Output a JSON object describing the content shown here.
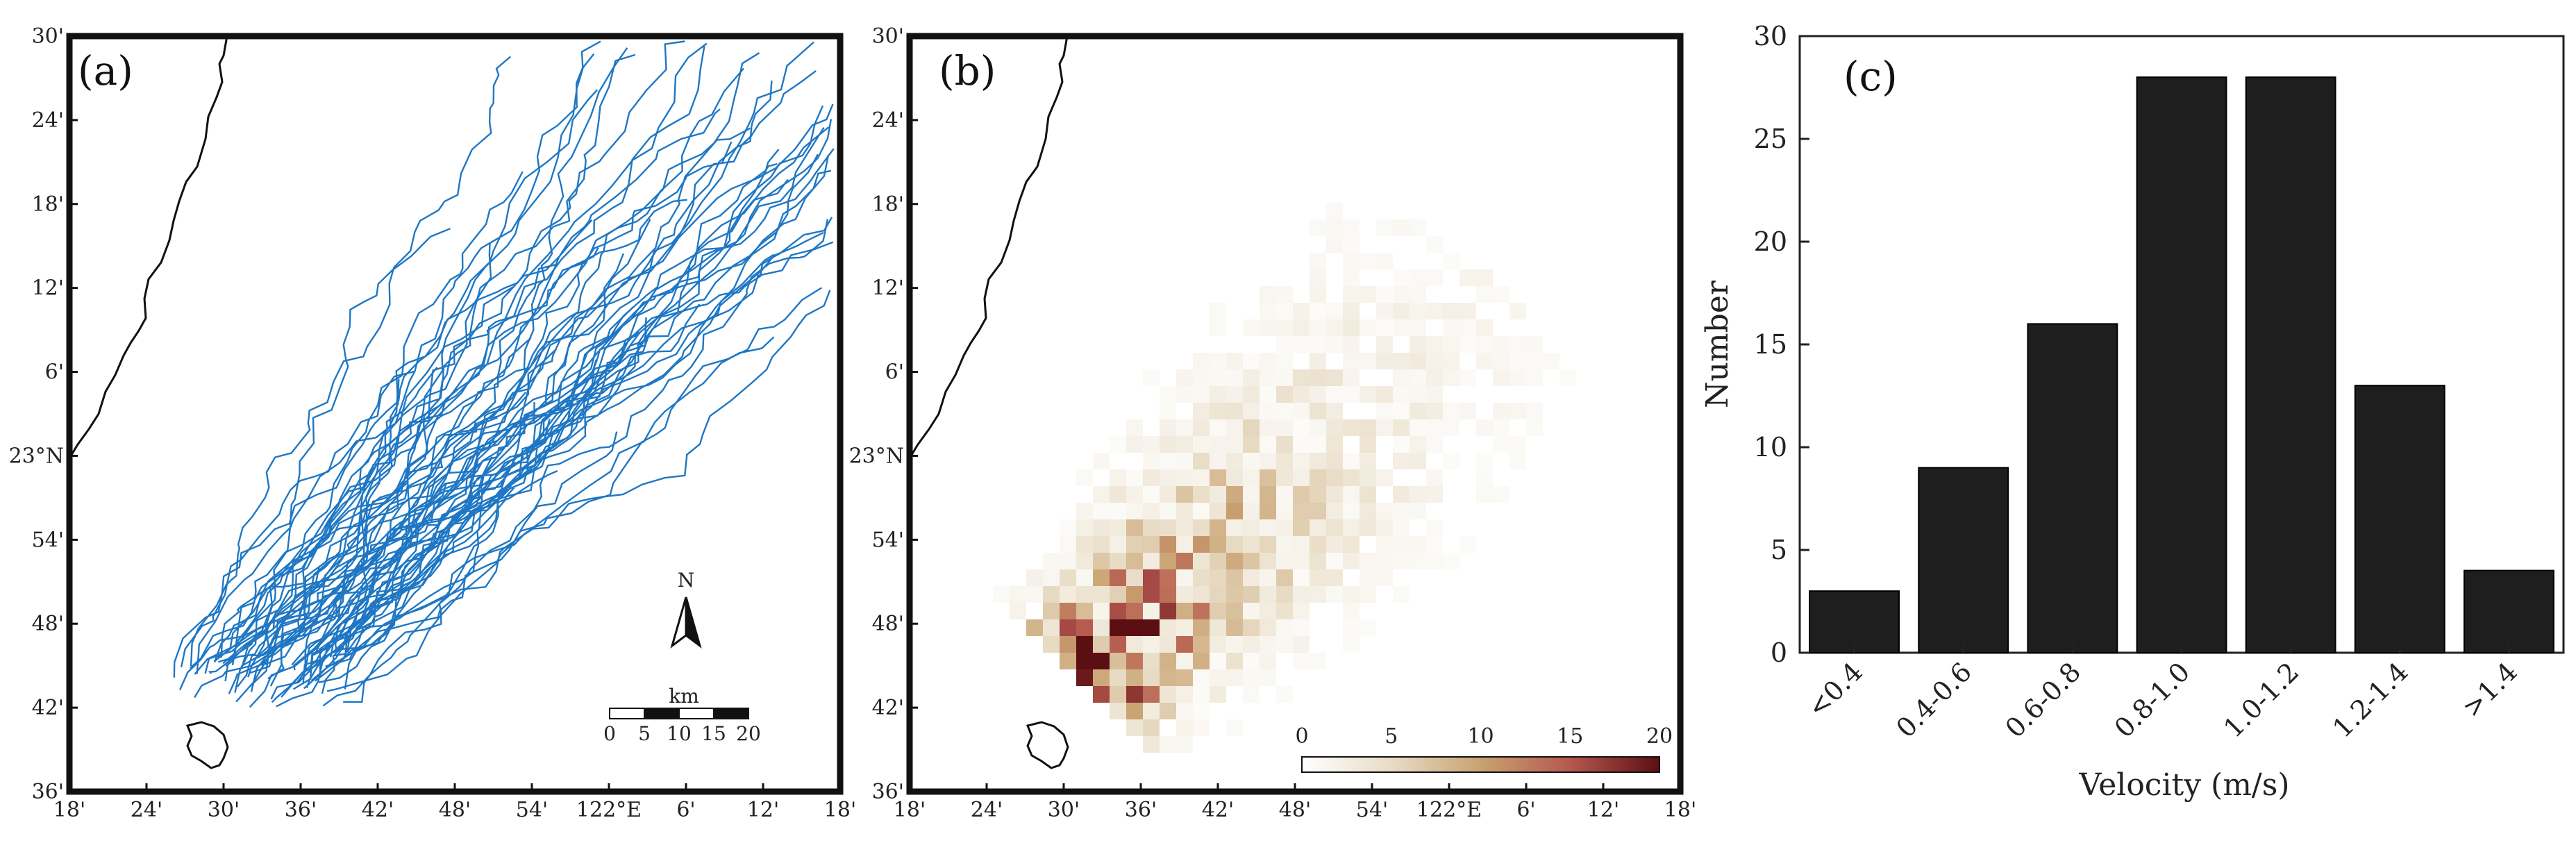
{
  "panels": {
    "a": {
      "label": "(a)"
    },
    "b": {
      "label": "(b)"
    },
    "c": {
      "label": "(c)"
    }
  },
  "map_ticks": {
    "lon": [
      "18'",
      "24'",
      "30'",
      "36'",
      "42'",
      "48'",
      "54'",
      "122°E",
      "6'",
      "12'",
      "18'"
    ],
    "lat": [
      "36'",
      "42'",
      "48'",
      "54'",
      "23°N",
      "6'",
      "12'",
      "18'",
      "24'",
      "30'"
    ]
  },
  "scale_bar": {
    "unit": "km",
    "labels": [
      "0",
      "5",
      "10",
      "15",
      "20"
    ]
  },
  "north_arrow": {
    "label": "N"
  },
  "colorbar": {
    "labels": [
      "0",
      "5",
      "10",
      "15",
      "20"
    ],
    "range": [
      0,
      20
    ],
    "colors": [
      "#ffffff",
      "#e8dcc5",
      "#c9a271",
      "#b6584f",
      "#5c0f12"
    ]
  },
  "colors": {
    "tracks": "#1f77c4",
    "bars": "#1e1e1e",
    "coast": "#111111"
  },
  "chart_data": [
    {
      "type": "line",
      "panel": "a",
      "x_range": [
        121.3,
        122.3
      ],
      "y_range": [
        22.6,
        23.5
      ],
      "description_series": "particle trajectories"
    },
    {
      "type": "heatmap",
      "panel": "b",
      "x_range": [
        121.3,
        122.3
      ],
      "y_range": [
        22.6,
        23.5
      ],
      "value_range": [
        0,
        20
      ]
    },
    {
      "type": "bar",
      "panel": "c",
      "categories": [
        "<0.4",
        "0.4-0.6",
        "0.6-0.8",
        "0.8-1.0",
        "1.0-1.2",
        "1.2-1.4",
        ">1.4"
      ],
      "values": [
        3,
        9,
        16,
        28,
        28,
        13,
        4
      ],
      "xlabel": "Velocity (m/s)",
      "ylabel": "Number",
      "ylim": [
        0,
        30
      ],
      "yticks": [
        "0",
        "5",
        "10",
        "15",
        "20",
        "25",
        "30"
      ],
      "grid": false
    }
  ]
}
